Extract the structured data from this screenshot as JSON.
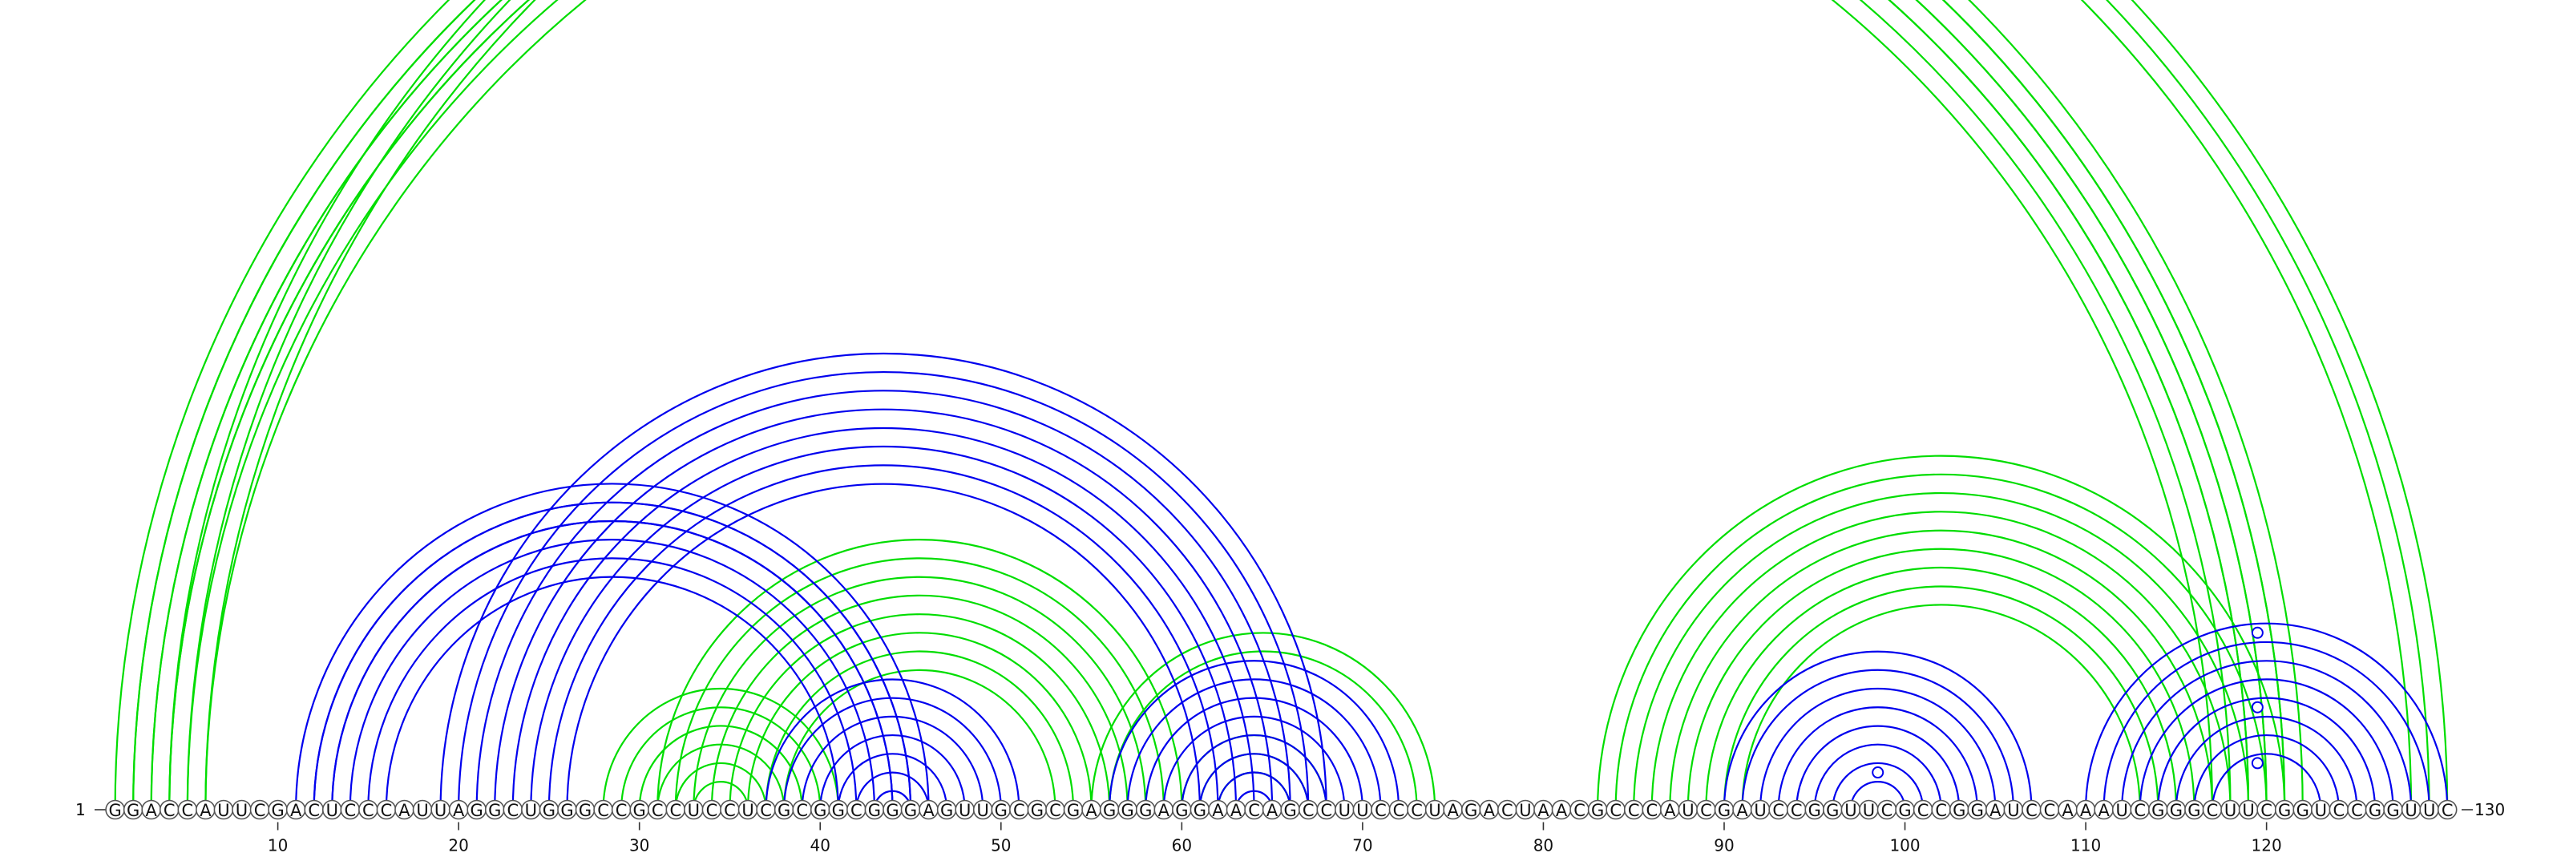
{
  "sequence": "GGACCAUUCGACUCCCAUUAGGCUGGGCCGCCUCCUCGCGGCGGGAGUUGCGCGAGGGAGGAACAGCCUUCCCUAGACUAACGCCCAUCGAUCCGGUUCGCCGGAUCCAAAUCGGGCUUCGGUCCGGUUC",
  "sequence_length": "130",
  "start_label": "1",
  "end_label": "130",
  "position_ticks": [
    "10",
    "20",
    "30",
    "40",
    "50",
    "60",
    "70",
    "80",
    "90",
    "100",
    "110",
    "120"
  ],
  "colors": {
    "blue": "#0000ee",
    "green": "#00dd00"
  },
  "helices": {
    "blue": [
      {
        "i": 11,
        "j": 46,
        "n": 3
      },
      {
        "i": 12,
        "j": 45,
        "n": 5
      },
      {
        "i": 19,
        "j": 68,
        "n": 8
      },
      {
        "i": 37,
        "j": 51,
        "n": 8
      },
      {
        "i": 56,
        "j": 72,
        "n": 8
      },
      {
        "i": 90,
        "j": 107,
        "n": 8
      },
      {
        "i": 110,
        "j": 130,
        "n": 8
      }
    ],
    "green": [
      {
        "i": 1,
        "j": 122,
        "n": 4
      },
      {
        "i": 2,
        "j": 121,
        "n": 5
      },
      {
        "i": 28,
        "j": 41,
        "n": 6
      },
      {
        "i": 31,
        "j": 60,
        "n": 8
      },
      {
        "i": 55,
        "j": 74,
        "n": 2
      },
      {
        "i": 60,
        "j": 68,
        "n": 3
      },
      {
        "i": 83,
        "j": 121,
        "n": 9
      },
      {
        "i": 4,
        "j": 130,
        "n": 3
      }
    ]
  },
  "markers": [
    {
      "pos": 65.5,
      "pair_span": 128,
      "color": "green"
    },
    {
      "pos": 98.5,
      "pair_span": 4,
      "color": "blue"
    },
    {
      "pos": 119.5,
      "pair_span": 5,
      "color": "blue"
    },
    {
      "pos": 119.5,
      "pair_span": 11,
      "color": "blue"
    },
    {
      "pos": 119.5,
      "pair_span": 19,
      "color": "blue"
    }
  ]
}
